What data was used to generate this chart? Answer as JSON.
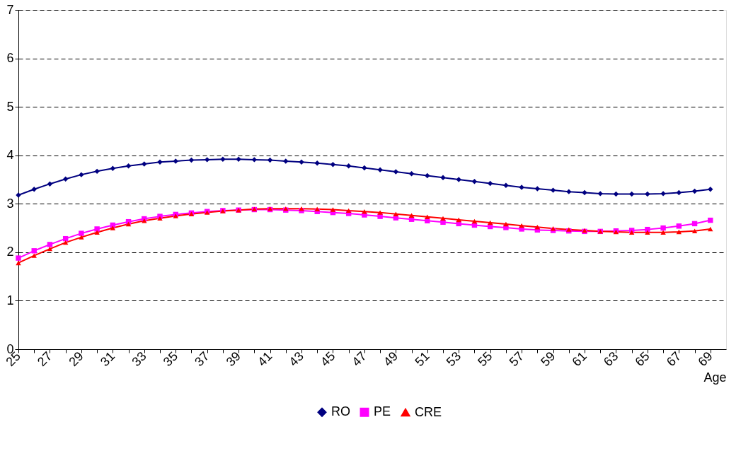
{
  "chart_data": {
    "type": "line",
    "xlabel": "Age",
    "categories": [
      "25",
      null,
      "27",
      null,
      "29",
      null,
      "31",
      null,
      "33",
      null,
      "35",
      null,
      "37",
      null,
      "39",
      null,
      "41",
      null,
      "43",
      null,
      "45",
      null,
      "47",
      null,
      "49",
      null,
      "51",
      null,
      "53",
      null,
      "55",
      null,
      "57",
      null,
      "59",
      null,
      "61",
      null,
      "63",
      null,
      "65",
      null,
      "67",
      null,
      "69"
    ],
    "series": [
      {
        "name": "RO",
        "color": "#000080",
        "marker": "diamond",
        "values": [
          3.18,
          3.3,
          3.41,
          3.51,
          3.6,
          3.67,
          3.73,
          3.78,
          3.82,
          3.86,
          3.88,
          3.9,
          3.91,
          3.92,
          3.92,
          3.91,
          3.9,
          3.88,
          3.86,
          3.84,
          3.81,
          3.78,
          3.74,
          3.7,
          3.66,
          3.62,
          3.58,
          3.54,
          3.5,
          3.46,
          3.42,
          3.38,
          3.34,
          3.31,
          3.28,
          3.25,
          3.23,
          3.21,
          3.2,
          3.2,
          3.2,
          3.21,
          3.23,
          3.26,
          3.3
        ]
      },
      {
        "name": "PE",
        "color": "#ff00ff",
        "marker": "square",
        "values": [
          1.88,
          2.03,
          2.16,
          2.28,
          2.39,
          2.48,
          2.56,
          2.63,
          2.69,
          2.74,
          2.78,
          2.81,
          2.84,
          2.86,
          2.87,
          2.88,
          2.88,
          2.87,
          2.86,
          2.84,
          2.82,
          2.8,
          2.77,
          2.74,
          2.71,
          2.68,
          2.65,
          2.62,
          2.59,
          2.56,
          2.53,
          2.51,
          2.48,
          2.46,
          2.45,
          2.44,
          2.43,
          2.43,
          2.44,
          2.45,
          2.47,
          2.5,
          2.54,
          2.59,
          2.66
        ]
      },
      {
        "name": "CRE",
        "color": "#ff0000",
        "marker": "triangle",
        "values": [
          1.78,
          1.93,
          2.07,
          2.2,
          2.31,
          2.41,
          2.5,
          2.58,
          2.65,
          2.7,
          2.75,
          2.79,
          2.82,
          2.85,
          2.87,
          2.89,
          2.9,
          2.9,
          2.9,
          2.89,
          2.88,
          2.86,
          2.84,
          2.82,
          2.79,
          2.76,
          2.73,
          2.7,
          2.67,
          2.64,
          2.61,
          2.58,
          2.55,
          2.52,
          2.49,
          2.47,
          2.45,
          2.43,
          2.42,
          2.41,
          2.41,
          2.41,
          2.42,
          2.44,
          2.48
        ]
      }
    ],
    "ylim": [
      0,
      7
    ],
    "yticks": [
      0,
      1,
      2,
      3,
      4,
      5,
      6,
      7
    ],
    "grid": "y",
    "legend": "bottom",
    "line_style": "solid"
  }
}
